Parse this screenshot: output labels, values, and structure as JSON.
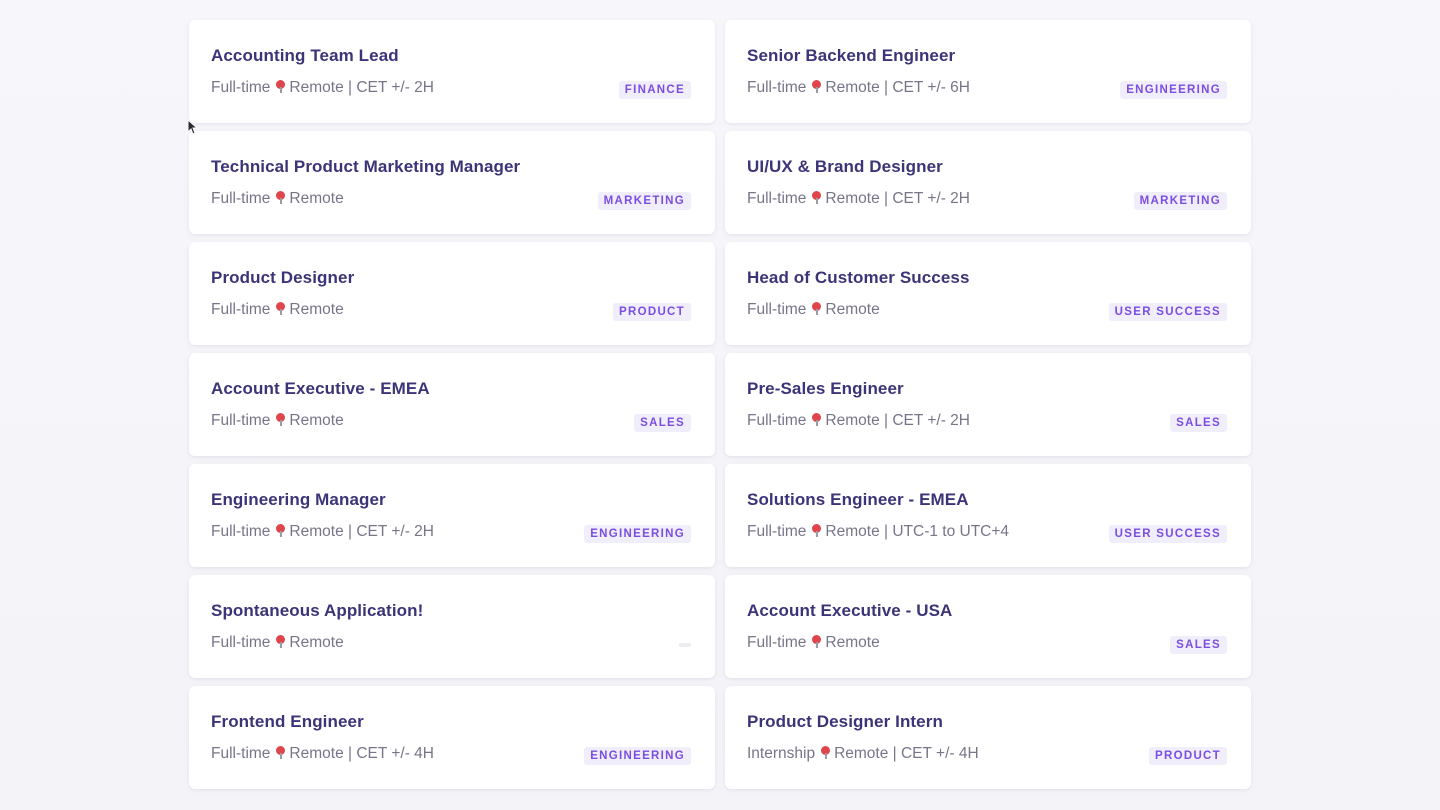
{
  "jobs": [
    {
      "title": "Accounting Team Lead",
      "type": "Full-time",
      "location": "Remote | CET +/- 2H",
      "tag": "FINANCE"
    },
    {
      "title": "Senior Backend Engineer",
      "type": "Full-time",
      "location": "Remote | CET +/- 6H",
      "tag": "ENGINEERING"
    },
    {
      "title": "Technical Product Marketing Manager",
      "type": "Full-time",
      "location": "Remote",
      "tag": "MARKETING"
    },
    {
      "title": "UI/UX & Brand Designer",
      "type": "Full-time",
      "location": "Remote | CET +/- 2H",
      "tag": "MARKETING"
    },
    {
      "title": "Product Designer",
      "type": "Full-time",
      "location": "Remote",
      "tag": "PRODUCT"
    },
    {
      "title": "Head of Customer Success",
      "type": "Full-time",
      "location": "Remote",
      "tag": "USER SUCCESS"
    },
    {
      "title": "Account Executive - EMEA",
      "type": "Full-time",
      "location": "Remote",
      "tag": "SALES"
    },
    {
      "title": "Pre-Sales Engineer",
      "type": "Full-time",
      "location": "Remote | CET +/- 2H",
      "tag": "SALES"
    },
    {
      "title": "Engineering Manager",
      "type": "Full-time",
      "location": "Remote | CET +/- 2H",
      "tag": "ENGINEERING"
    },
    {
      "title": "Solutions Engineer - EMEA",
      "type": "Full-time",
      "location": "Remote | UTC-1 to UTC+4",
      "tag": "USER SUCCESS"
    },
    {
      "title": "Spontaneous Application!",
      "type": "Full-time",
      "location": "Remote",
      "tag": ""
    },
    {
      "title": "Account Executive - USA",
      "type": "Full-time",
      "location": "Remote",
      "tag": "SALES"
    },
    {
      "title": "Frontend Engineer",
      "type": "Full-time",
      "location": "Remote | CET +/- 4H",
      "tag": "ENGINEERING"
    },
    {
      "title": "Product Designer Intern",
      "type": "Internship",
      "location": "Remote | CET +/- 4H",
      "tag": "PRODUCT"
    }
  ],
  "icons": {
    "location": "map-pin-icon",
    "cursor": "mouse-cursor-icon"
  },
  "colors": {
    "title": "#3c3478",
    "meta": "#777588",
    "tag_text": "#7a4ee0",
    "tag_bg": "#f1eefb",
    "pin": "#e0454b"
  }
}
